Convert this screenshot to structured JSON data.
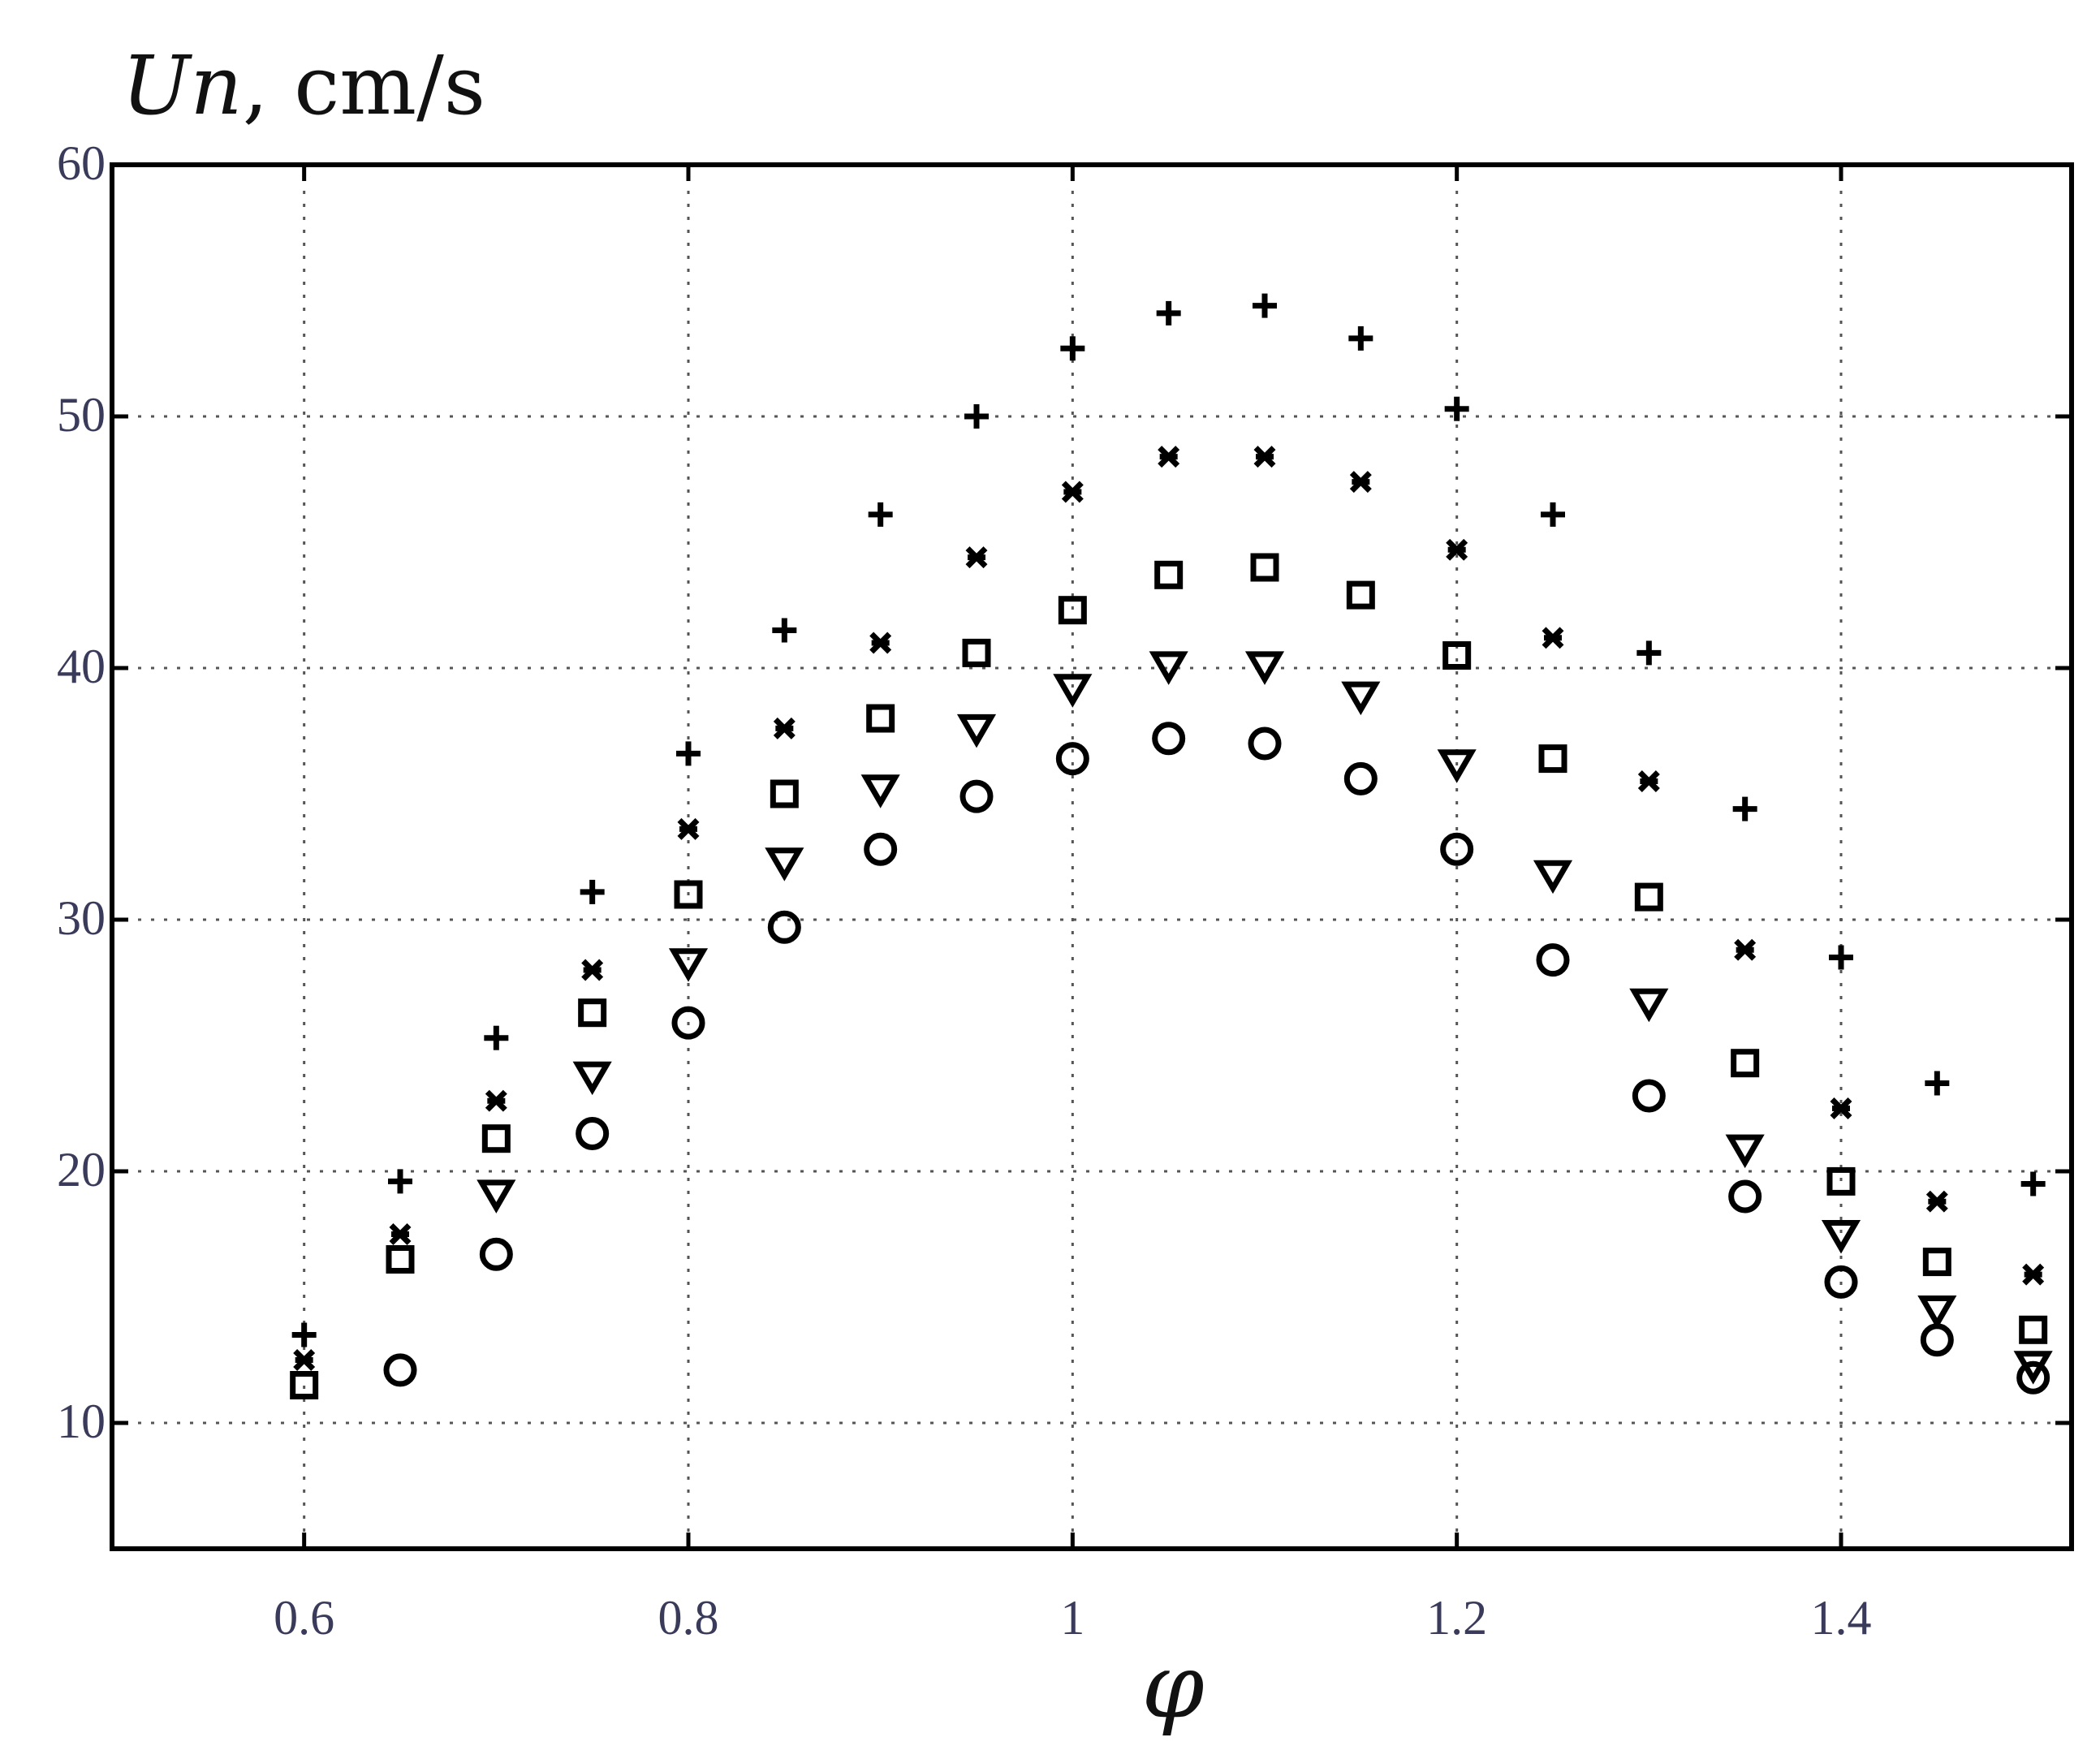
{
  "chart_data": {
    "type": "scatter",
    "title": "",
    "ylabel_italic": "Un",
    "ylabel_rest": ", cm/s",
    "xlabel": "φ",
    "xlim": [
      0.5,
      1.52
    ],
    "ylim": [
      5,
      60
    ],
    "x_ticks": [
      {
        "value": 0.6,
        "label": "0.6"
      },
      {
        "value": 0.8,
        "label": "0.8"
      },
      {
        "value": 1.0,
        "label": "1"
      },
      {
        "value": 1.2,
        "label": "1.2"
      },
      {
        "value": 1.4,
        "label": "1.4"
      }
    ],
    "y_ticks": [
      {
        "value": 10,
        "label": "10"
      },
      {
        "value": 20,
        "label": "20"
      },
      {
        "value": 30,
        "label": "30"
      },
      {
        "value": 40,
        "label": "40"
      },
      {
        "value": 50,
        "label": "50"
      },
      {
        "value": 60,
        "label": "60"
      }
    ],
    "grid": true,
    "x": [
      0.6,
      0.65,
      0.7,
      0.75,
      0.8,
      0.85,
      0.9,
      0.95,
      1.0,
      1.05,
      1.1,
      1.15,
      1.2,
      1.25,
      1.3,
      1.35,
      1.4,
      1.45,
      1.5
    ],
    "series": [
      {
        "marker": "plus",
        "values": [
          13.5,
          19.6,
          25.3,
          31.1,
          36.6,
          41.5,
          46.1,
          50.0,
          52.7,
          54.1,
          54.4,
          53.1,
          50.3,
          46.1,
          40.6,
          34.4,
          28.5,
          23.5,
          19.5
        ]
      },
      {
        "marker": "star",
        "values": [
          12.5,
          17.5,
          22.8,
          28.0,
          33.6,
          37.6,
          41.0,
          44.4,
          47.0,
          48.4,
          48.4,
          47.4,
          44.7,
          41.2,
          35.5,
          28.8,
          22.5,
          18.8,
          15.9
        ]
      },
      {
        "marker": "square",
        "values": [
          11.5,
          16.5,
          21.3,
          26.3,
          31.0,
          35.0,
          38.0,
          40.6,
          42.3,
          43.7,
          44.0,
          42.9,
          40.5,
          36.4,
          30.9,
          24.3,
          19.6,
          16.4,
          13.7
        ]
      },
      {
        "marker": "triangle-down",
        "values": [
          null,
          null,
          19.1,
          23.8,
          28.3,
          32.3,
          35.2,
          37.6,
          39.2,
          40.1,
          40.1,
          38.9,
          36.2,
          31.8,
          26.7,
          20.9,
          17.5,
          14.5,
          12.3
        ]
      },
      {
        "marker": "circle",
        "values": [
          null,
          12.1,
          16.7,
          21.5,
          25.9,
          29.7,
          32.8,
          34.9,
          36.4,
          37.2,
          37.0,
          35.6,
          32.8,
          28.4,
          23.0,
          19.0,
          15.6,
          13.3,
          11.8
        ]
      }
    ]
  }
}
